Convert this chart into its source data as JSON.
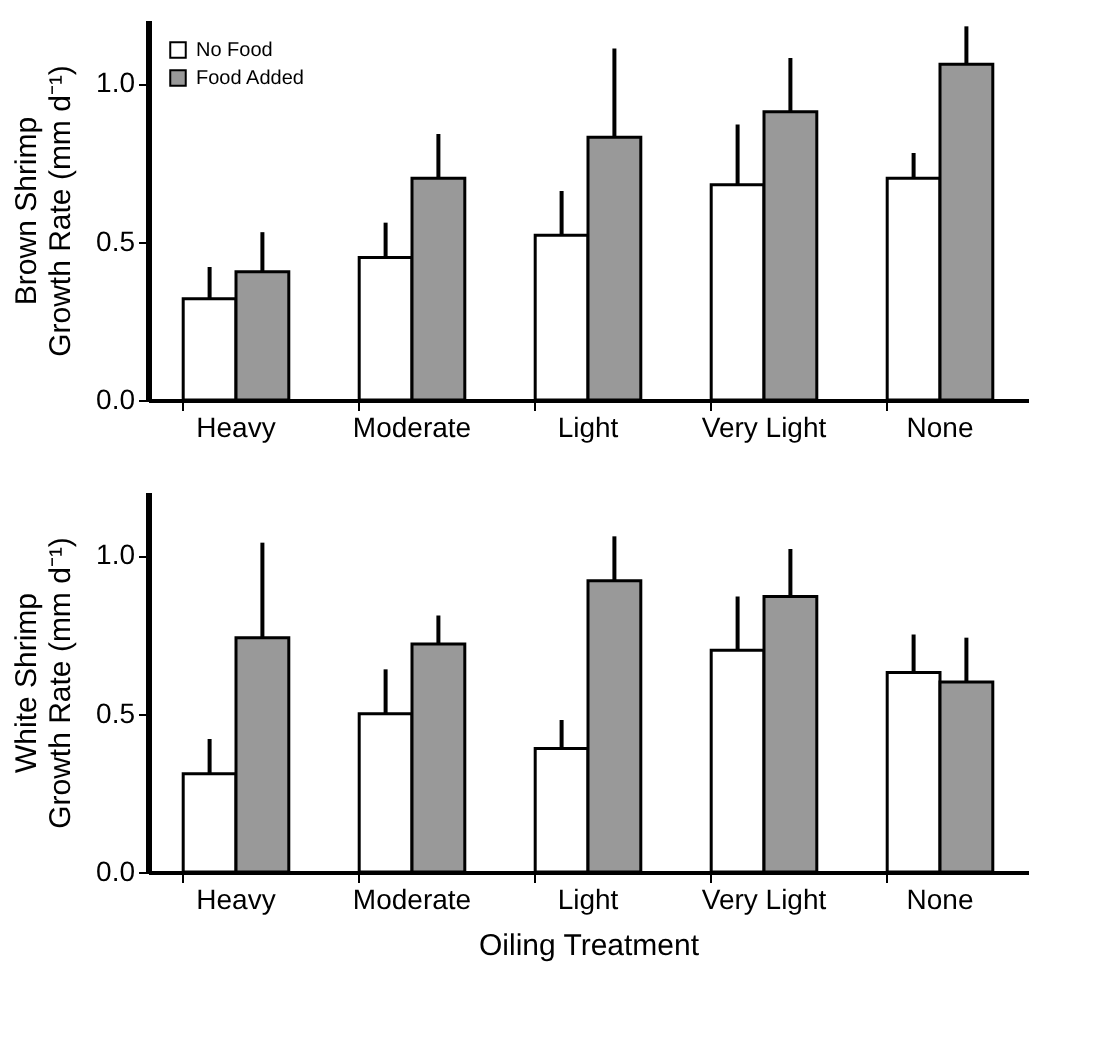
{
  "chart_data": [
    {
      "type": "bar",
      "ylabel": "Brown Shrimp\nGrowth Rate (mm d⁻¹)",
      "categories": [
        "Heavy",
        "Moderate",
        "Light",
        "Very Light",
        "None"
      ],
      "series": [
        {
          "name": "No Food",
          "color": "#ffffff",
          "values": [
            0.32,
            0.45,
            0.52,
            0.68,
            0.7
          ],
          "errors": [
            [
              0.32,
              0.42
            ],
            [
              0.45,
              0.56
            ],
            [
              0.52,
              0.66
            ],
            [
              0.68,
              0.87
            ],
            [
              0.7,
              0.78
            ]
          ]
        },
        {
          "name": "Food Added",
          "color": "#999999",
          "values": [
            0.405,
            0.7,
            0.83,
            0.91,
            1.06
          ],
          "errors": [
            [
              0.405,
              0.53
            ],
            [
              0.7,
              0.84
            ],
            [
              0.83,
              1.11
            ],
            [
              0.91,
              1.08
            ],
            [
              1.06,
              1.18
            ]
          ]
        }
      ],
      "ylim": [
        0,
        1.2
      ],
      "yticks": [
        {
          "value": 0,
          "label": "0.0"
        },
        {
          "value": 0.5,
          "label": "0.5"
        },
        {
          "value": 1,
          "label": "1.0"
        }
      ],
      "legend": "top left"
    },
    {
      "type": "bar",
      "ylabel": "White Shrimp\nGrowth Rate (mm d⁻¹)",
      "xlabel": "Oiling Treatment",
      "categories": [
        "Heavy",
        "Moderate",
        "Light",
        "Very Light",
        "None"
      ],
      "series": [
        {
          "color": "#ffffff",
          "values": [
            0.31,
            0.5,
            0.39,
            0.7,
            0.63
          ],
          "errors": [
            [
              0.31,
              0.42
            ],
            [
              0.5,
              0.64
            ],
            [
              0.39,
              0.48
            ],
            [
              0.7,
              0.87
            ],
            [
              0.63,
              0.75
            ]
          ]
        },
        {
          "color": "#999999",
          "values": [
            0.74,
            0.72,
            0.92,
            0.87,
            0.6
          ],
          "errors": [
            [
              0.74,
              1.04
            ],
            [
              0.72,
              0.81
            ],
            [
              0.92,
              1.06
            ],
            [
              0.87,
              1.02
            ],
            [
              0.6,
              0.74
            ]
          ]
        }
      ],
      "ylim": [
        0,
        1.2
      ],
      "yticks": [
        {
          "value": 0,
          "label": "0.0"
        },
        {
          "value": 0.5,
          "label": "0.5"
        },
        {
          "value": 1,
          "label": "1.0"
        }
      ]
    }
  ]
}
